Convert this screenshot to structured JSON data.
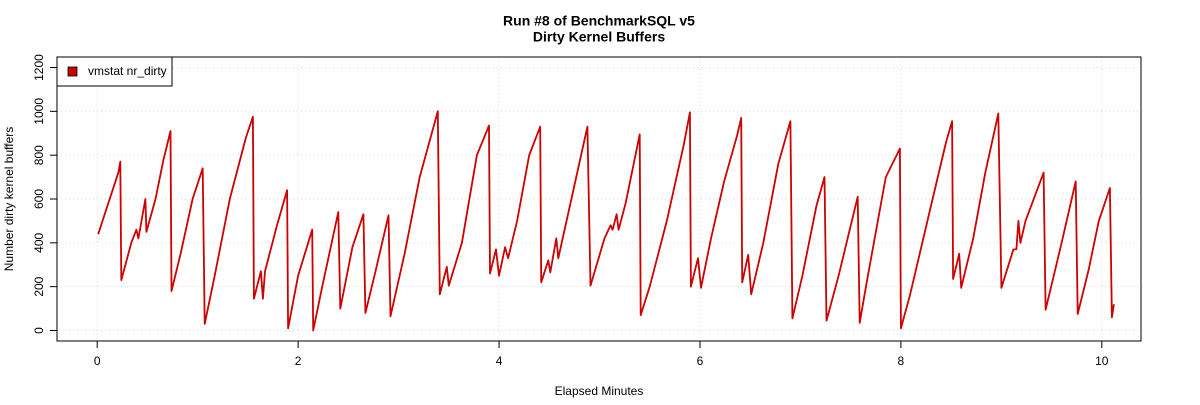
{
  "chart_data": {
    "type": "line",
    "title": "Run #8 of BenchmarkSQL v5",
    "subtitle": "Dirty Kernel Buffers",
    "x_label": "Elapsed Minutes",
    "y_label": "Number dirty kernel buffers",
    "xlim": [
      -0.4,
      10.39
    ],
    "ylim": [
      -48,
      1248
    ],
    "xticks": [
      0,
      2,
      4,
      6,
      8,
      10
    ],
    "yticks": [
      0,
      200,
      400,
      600,
      800,
      1000,
      1200
    ],
    "grid": true,
    "legend": "top-left",
    "series": [
      {
        "name": "vmstat nr_dirty",
        "color": "#cd0000",
        "x": [
          0.01,
          0.21,
          0.23,
          0.24,
          0.34,
          0.39,
          0.41,
          0.48,
          0.49,
          0.58,
          0.66,
          0.73,
          0.74,
          0.83,
          0.95,
          1.05,
          1.07,
          1.17,
          1.32,
          1.48,
          1.55,
          1.56,
          1.63,
          1.65,
          1.67,
          1.79,
          1.89,
          1.9,
          2.0,
          2.14,
          2.15,
          2.24,
          2.4,
          2.42,
          2.54,
          2.65,
          2.67,
          2.77,
          2.9,
          2.92,
          3.06,
          3.21,
          3.39,
          3.41,
          3.48,
          3.5,
          3.63,
          3.78,
          3.9,
          3.91,
          3.97,
          4.0,
          4.06,
          4.09,
          4.18,
          4.3,
          4.41,
          4.42,
          4.49,
          4.51,
          4.57,
          4.59,
          4.72,
          4.88,
          4.91,
          5.05,
          5.11,
          5.13,
          5.17,
          5.19,
          5.26,
          5.4,
          5.41,
          5.5,
          5.67,
          5.84,
          5.9,
          5.91,
          5.98,
          6.01,
          6.11,
          6.24,
          6.37,
          6.41,
          6.42,
          6.48,
          6.51,
          6.63,
          6.78,
          6.9,
          6.92,
          7.02,
          7.16,
          7.24,
          7.26,
          7.38,
          7.57,
          7.59,
          7.66,
          7.85,
          7.99,
          8.0,
          8.09,
          8.29,
          8.45,
          8.51,
          8.52,
          8.58,
          8.6,
          8.72,
          8.84,
          8.97,
          9.0,
          9.12,
          9.15,
          9.17,
          9.19,
          9.24,
          9.42,
          9.44,
          9.59,
          9.74,
          9.76,
          9.87,
          9.97,
          10.08,
          10.1,
          10.12
        ],
        "values": [
          440,
          720,
          770,
          230,
          400,
          460,
          420,
          600,
          450,
          600,
          780,
          910,
          180,
          350,
          600,
          740,
          30,
          250,
          600,
          880,
          975,
          145,
          270,
          145,
          270,
          480,
          640,
          10,
          250,
          460,
          0,
          200,
          540,
          100,
          380,
          530,
          80,
          270,
          525,
          65,
          350,
          700,
          1000,
          165,
          290,
          205,
          400,
          800,
          935,
          260,
          370,
          250,
          380,
          330,
          500,
          800,
          930,
          220,
          320,
          265,
          420,
          330,
          600,
          930,
          205,
          420,
          480,
          460,
          530,
          460,
          580,
          895,
          70,
          200,
          500,
          850,
          995,
          200,
          330,
          195,
          420,
          680,
          890,
          970,
          220,
          345,
          165,
          400,
          760,
          955,
          55,
          250,
          570,
          700,
          45,
          250,
          610,
          35,
          220,
          700,
          830,
          10,
          160,
          550,
          860,
          955,
          235,
          350,
          195,
          420,
          720,
          990,
          195,
          370,
          370,
          500,
          400,
          500,
          720,
          95,
          380,
          680,
          75,
          280,
          500,
          650,
          60,
          120
        ]
      }
    ]
  }
}
